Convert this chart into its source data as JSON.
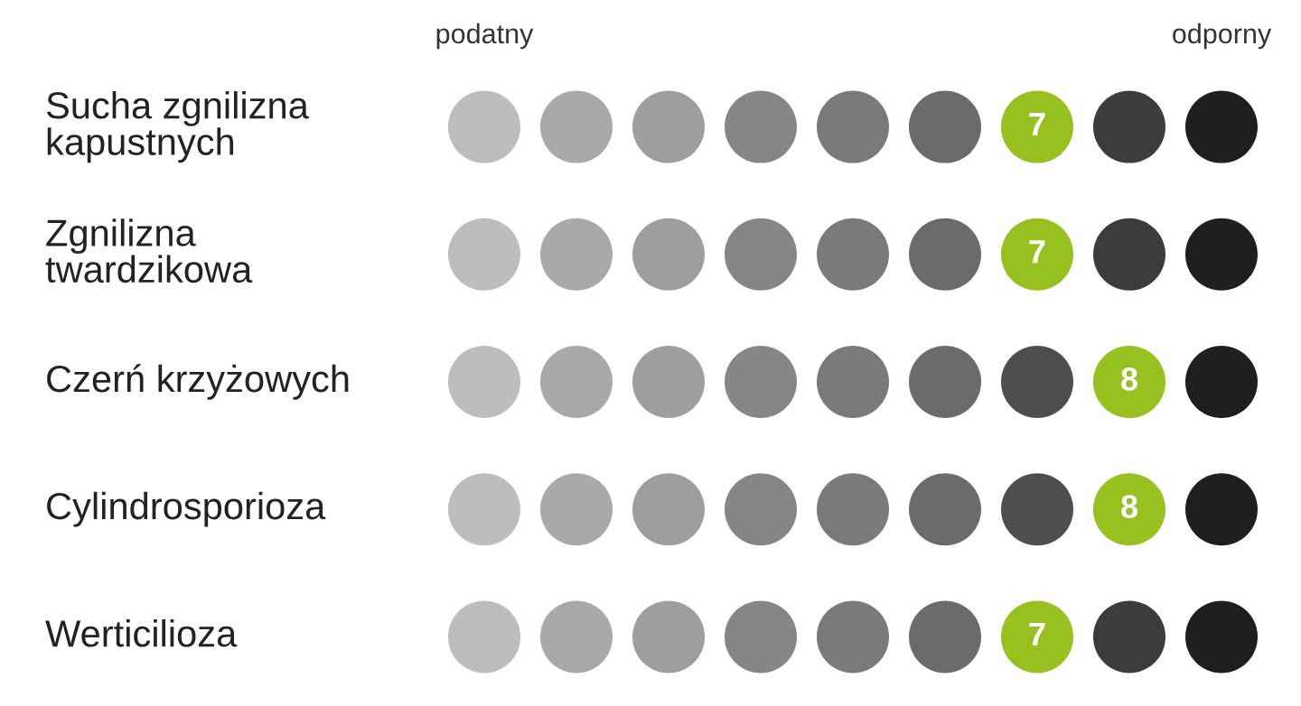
{
  "chart_data": {
    "type": "other",
    "categories": [
      "Sucha zgnilizna\nkapustnych",
      "Zgnilizna\ntwardzikowa",
      "Czerń krzyżowych",
      "Cylindrosporioza",
      "Werticilioza"
    ],
    "values": [
      7,
      7,
      8,
      8,
      7
    ],
    "colors": [
      "#97c11f",
      "#97c11f",
      "#97c11f",
      "#97c11f",
      "#97c11f"
    ],
    "annotations": [
      "podatny",
      "odporny"
    ],
    "data_labels": true
  }
}
